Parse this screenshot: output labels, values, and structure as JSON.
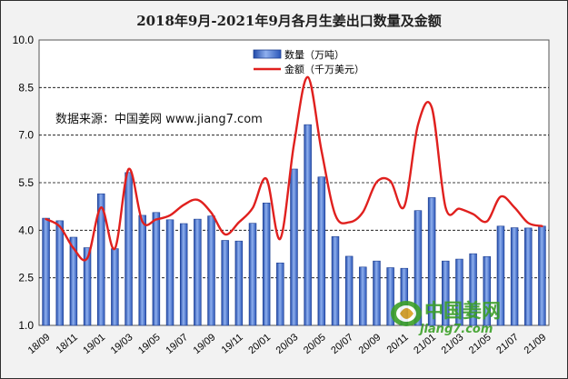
{
  "chart_data": {
    "type": "bar+line",
    "title": "2018年9月-2021年9月各月生姜出口数量及金额",
    "xlabel": "",
    "ylabel": "",
    "ylim": [
      1.0,
      10.0
    ],
    "yticks": [
      "1.0",
      "2.5",
      "4.0",
      "5.5",
      "7.0",
      "8.5",
      "10.0"
    ],
    "ytick_values": [
      1.0,
      2.5,
      4.0,
      5.5,
      7.0,
      8.5,
      10.0
    ],
    "grid": "horizontal dashed",
    "legend_position": "top-center",
    "x_tick_labels": [
      "18/09",
      "18/11",
      "19/01",
      "19/03",
      "19/05",
      "19/07",
      "19/09",
      "19/11",
      "20/01",
      "20/03",
      "20/05",
      "20/07",
      "20/09",
      "20/11",
      "21/01",
      "21/03",
      "21/05",
      "21/07",
      "21/09"
    ],
    "categories": [
      "18/09",
      "18/10",
      "18/11",
      "18/12",
      "19/01",
      "19/02",
      "19/03",
      "19/04",
      "19/05",
      "19/06",
      "19/07",
      "19/08",
      "19/09",
      "19/10",
      "19/11",
      "19/12",
      "20/01",
      "20/02",
      "20/03",
      "20/04",
      "20/05",
      "20/06",
      "20/07",
      "20/08",
      "20/09",
      "20/10",
      "20/11",
      "20/12",
      "21/01",
      "21/02",
      "21/03",
      "21/04",
      "21/05",
      "21/06",
      "21/07",
      "21/08",
      "21/09"
    ],
    "series": [
      {
        "name": "数量（万吨）",
        "kind": "bar",
        "color": "#3a68c8",
        "values": [
          4.38,
          4.3,
          3.78,
          3.45,
          5.15,
          3.42,
          5.82,
          4.47,
          4.56,
          4.33,
          4.21,
          4.35,
          4.45,
          3.68,
          3.66,
          4.22,
          4.86,
          2.97,
          5.93,
          7.33,
          5.68,
          3.8,
          3.18,
          2.84,
          3.03,
          2.82,
          2.8,
          4.62,
          5.03,
          3.03,
          3.09,
          3.26,
          3.17,
          4.13,
          4.08,
          4.07,
          4.13
        ]
      },
      {
        "name": "金额（千万美元）",
        "kind": "line",
        "color": "#e0201e",
        "values": [
          4.35,
          4.12,
          3.43,
          3.12,
          4.72,
          3.42,
          5.93,
          4.27,
          4.34,
          4.47,
          4.8,
          4.96,
          4.55,
          3.87,
          4.25,
          4.7,
          5.62,
          3.73,
          6.72,
          8.83,
          6.5,
          4.48,
          4.25,
          4.57,
          5.52,
          5.55,
          4.75,
          7.33,
          7.87,
          4.72,
          4.68,
          4.51,
          4.28,
          5.06,
          4.72,
          4.23,
          4.13
        ]
      }
    ],
    "annotations": [
      "数据来源：中国姜网 www.jiang7.com"
    ]
  },
  "legend": {
    "qty_label": "数量（万吨）",
    "amount_label": "金额（千万美元）"
  },
  "source_note": "数据来源：中国姜网 www.jiang7.com",
  "watermark": {
    "brand": "中国姜网",
    "url": "jiang7.com"
  },
  "colors": {
    "bar": "#3a68c8",
    "bar_light": "#8fb0ee",
    "line": "#e0201e",
    "frame_bg": "#f2f2f2",
    "plot_bg": "#ffffff",
    "watermark": "#3ca028"
  }
}
